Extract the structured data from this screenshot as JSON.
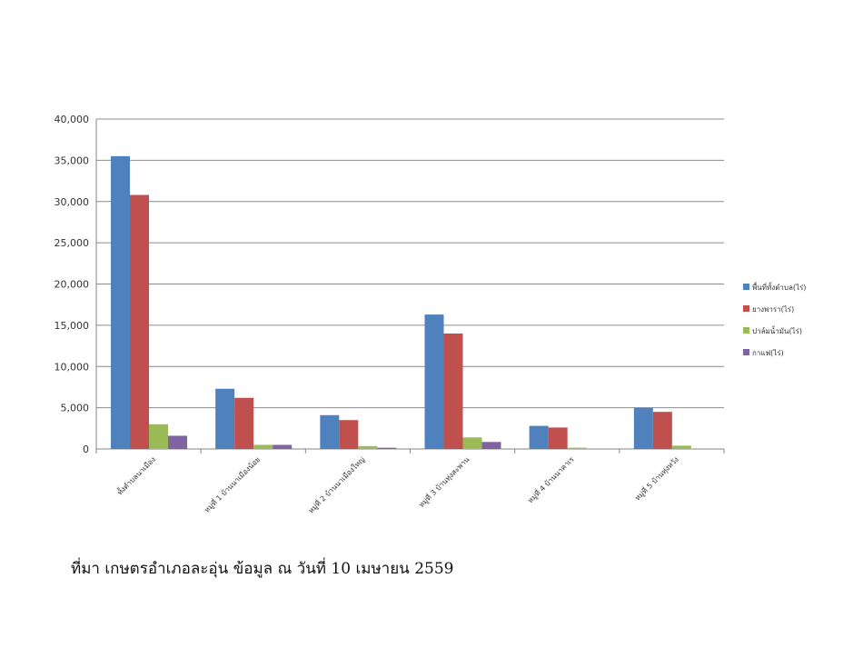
{
  "chart_data": {
    "type": "bar",
    "categories": [
      "ทั้งตำบลนาเมือง",
      "หมู่ที่ 1 บ้านนาเมืองน้อย",
      "หมู่ที่ 2 บ้านนาเมืองใหญ่",
      "หมู่ที่ 3 บ้านทุ่งสะพาน",
      "หมู่ที่ 4 บ้านนาคาเร",
      "หมู่ที่ 5 บ้านทุ่งหวัง"
    ],
    "series": [
      {
        "name": "พื้นที่ทั้งตำบล(ไร่)",
        "color": "#4F81BD",
        "values": [
          35500,
          7300,
          4100,
          16300,
          2800,
          5000
        ]
      },
      {
        "name": "ยางพารา(ไร่)",
        "color": "#C0504D",
        "values": [
          30800,
          6200,
          3500,
          14000,
          2600,
          4500
        ]
      },
      {
        "name": "ปาล์มน้ำมัน(ไร่)",
        "color": "#9BBB59",
        "values": [
          3000,
          500,
          350,
          1400,
          150,
          400
        ]
      },
      {
        "name": "กาแฟ(ไร่)",
        "color": "#8064A2",
        "values": [
          1600,
          500,
          150,
          850,
          0,
          0
        ]
      }
    ],
    "yticks": [
      "0",
      "5,000",
      "10,000",
      "15,000",
      "20,000",
      "25,000",
      "30,000",
      "35,000",
      "40,000"
    ],
    "ylim": [
      0,
      40000
    ],
    "grid": true,
    "legend_position": "right",
    "title": "",
    "xlabel": "",
    "ylabel": ""
  },
  "source_note": "ที่มา เกษตรอำเภอละอุ่น ข้อมูล ณ วันที่ 10 เมษายน 2559"
}
